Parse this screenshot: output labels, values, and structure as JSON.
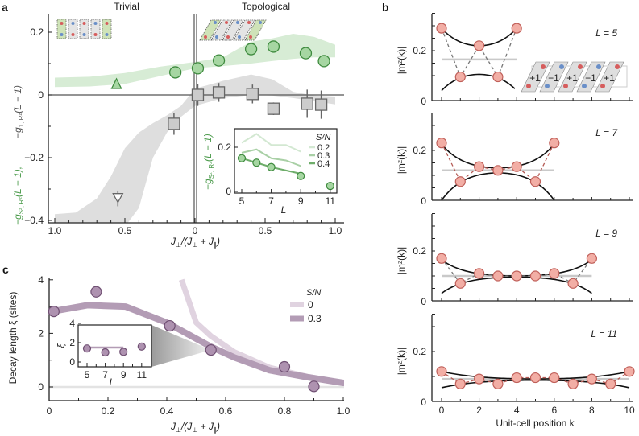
{
  "panel_labels": {
    "a": "a",
    "b": "b",
    "c": "c"
  },
  "colors": {
    "green_fill": "#a6d6a2",
    "green_stroke": "#3f8b3f",
    "green_band": "#d7ecd5",
    "gray_band": "#dedede",
    "square_fill": "#cccccc",
    "square_stroke": "#666666",
    "purple_fill": "#ae92b0",
    "purple_stroke": "#6f4f72",
    "purple_curve": "#b39cb5",
    "purple_light": "#e0d3e0",
    "pink_fill": "#f2aea5",
    "pink_stroke": "#c0605a"
  },
  "chart_data": [
    {
      "id": "a",
      "type": "scatter",
      "region_labels": [
        "Trivial",
        "Topological"
      ],
      "xlabel": [
        "J",
        "⊥",
        "/(J",
        "⊥",
        " + J",
        "∥",
        ")"
      ],
      "ylabel_green": [
        "−g",
        "Sᶻ, Rᶻ",
        "(L − 1),"
      ],
      "ylabel_gray": [
        "−g",
        "1, Rᶻ",
        "(L − 1)"
      ],
      "xlim": [
        -1,
        1
      ],
      "ylim": [
        -0.4,
        0.26
      ],
      "xticks": [
        -1,
        -0.5,
        0,
        0.5,
        1
      ],
      "xtick_labels": [
        "1.0",
        "0.5",
        "0",
        "0.5",
        "1.0"
      ],
      "yticks": [
        0.2,
        0,
        -0.2,
        -0.4
      ],
      "ytick_labels": [
        "0.2",
        "0",
        "−0.2",
        "−0.4"
      ],
      "grid": false,
      "series": [
        {
          "name": "g_Sz_Rz",
          "marker": "circle",
          "x": [
            -0.14,
            0.02,
            0.17,
            0.4,
            0.56,
            0.79,
            0.92
          ],
          "y": [
            0.072,
            0.085,
            0.11,
            0.146,
            0.154,
            0.133,
            0.108
          ]
        },
        {
          "name": "g_Sz_Rz_trivial",
          "marker": "triangle-up",
          "x": [
            -0.56
          ],
          "y": [
            0.036
          ]
        },
        {
          "name": "g_1_Rz",
          "marker": "square",
          "x": [
            -0.15,
            0.02,
            0.17,
            0.41,
            0.56,
            0.8,
            0.9
          ],
          "y": [
            -0.092,
            0.0,
            0.008,
            0.003,
            -0.044,
            -0.028,
            -0.031
          ],
          "err": [
            0.035,
            0.035,
            0.03,
            0.03,
            0.02,
            0.045,
            0.045
          ]
        },
        {
          "name": "g_1_Rz_trivial",
          "marker": "triangle-down",
          "x": [
            -0.55
          ],
          "y": [
            -0.33
          ],
          "err": [
            0.025
          ]
        }
      ],
      "bands": [
        {
          "name": "green-band",
          "x": [
            -1,
            -0.75,
            -0.5,
            -0.25,
            0,
            0.2,
            0.4,
            0.55,
            0.7,
            0.85,
            1
          ],
          "lower": [
            0.025,
            0.027,
            0.035,
            0.06,
            0.085,
            0.092,
            0.1,
            0.108,
            0.115,
            0.12,
            0.12
          ],
          "upper": [
            0.055,
            0.058,
            0.07,
            0.09,
            0.105,
            0.12,
            0.17,
            0.18,
            0.195,
            0.185,
            0.16
          ]
        },
        {
          "name": "gray-band",
          "x": [
            -1,
            -0.85,
            -0.7,
            -0.6,
            -0.5,
            -0.4,
            -0.3,
            -0.2,
            -0.1,
            0,
            0.2,
            0.4,
            0.55,
            0.7,
            0.85,
            1
          ],
          "lower": [
            -0.42,
            -0.42,
            -0.42,
            -0.42,
            -0.42,
            -0.36,
            -0.2,
            -0.12,
            -0.07,
            -0.035,
            -0.01,
            0.0,
            -0.002,
            -0.01,
            -0.02,
            -0.03
          ],
          "upper": [
            -0.38,
            -0.375,
            -0.33,
            -0.26,
            -0.17,
            -0.12,
            -0.09,
            -0.065,
            -0.035,
            0.02,
            0.045,
            0.065,
            0.05,
            0.01,
            -0.002,
            -0.005
          ]
        }
      ],
      "inset": {
        "type": "line",
        "xlabel": "L",
        "ylabel": [
          "−g",
          "Sᶻ, Rᶻ",
          "(L − 1)"
        ],
        "xticks": [
          5,
          7,
          9,
          11
        ],
        "xtick_labels": [
          "5",
          "7",
          "9",
          "11"
        ],
        "yticks": [
          0.2,
          0
        ],
        "ytick_labels": [
          "0.2",
          "0"
        ],
        "xlim": [
          4.5,
          11.5
        ],
        "ylim": [
          0,
          0.29
        ],
        "legend_title": "S/N",
        "legend_position": "right",
        "points": {
          "x": [
            5,
            6,
            7,
            9,
            11
          ],
          "y": [
            0.15,
            0.13,
            0.11,
            0.07,
            0.025
          ]
        },
        "series": [
          {
            "name": "0.2",
            "color": "#d3e8d2",
            "x": [
              5,
              6,
              7,
              8,
              9
            ],
            "y": [
              0.22,
              0.26,
              0.21,
              0.21,
              0.18
            ]
          },
          {
            "name": "0.3",
            "color": "#a9d0a6",
            "x": [
              5,
              6,
              7,
              8,
              9
            ],
            "y": [
              0.175,
              0.19,
              0.15,
              0.14,
              0.115
            ]
          },
          {
            "name": "0.4",
            "color": "#6ead6a",
            "x": [
              5,
              6,
              7,
              8,
              9
            ],
            "y": [
              0.15,
              0.13,
              0.11,
              0.095,
              0.08
            ]
          }
        ]
      }
    },
    {
      "id": "b",
      "type": "scatter",
      "xlabel": "Unit-cell position k",
      "ylabel": "|mᶻ(k)|",
      "xticks": [
        0,
        2,
        4,
        6,
        8,
        10
      ],
      "xtick_labels": [
        "0",
        "2",
        "4",
        "6",
        "8",
        "10"
      ],
      "ytick_labels": [
        "0",
        "0.2"
      ],
      "ylim": [
        0,
        0.35
      ],
      "xlim": [
        -0.5,
        10.5
      ],
      "subplots": [
        {
          "label": "L = 5",
          "values": [
            0.29,
            0.095,
            0.22,
            0.095,
            0.29
          ],
          "mean": 0.165,
          "upper": {
            "edge": 0.29,
            "center": 0.22
          },
          "lower": {
            "edge": 0.04,
            "center": 0.105
          },
          "dash_color": "#777777"
        },
        {
          "label": "L = 7",
          "values": [
            0.23,
            0.075,
            0.135,
            0.12,
            0.135,
            0.075,
            0.23
          ],
          "mean": 0.12,
          "upper": {
            "edge": 0.225,
            "center": 0.13
          },
          "lower": {
            "edge": 0.0,
            "center": 0.11
          },
          "dash_color": "#b55b55"
        },
        {
          "label": "L = 9",
          "values": [
            0.17,
            0.07,
            0.11,
            0.1,
            0.1,
            0.1,
            0.11,
            0.07,
            0.17
          ],
          "mean": 0.1,
          "upper": {
            "edge": 0.165,
            "center": 0.1
          },
          "lower": {
            "edge": 0.03,
            "center": 0.095
          },
          "dash_color": "#777777"
        },
        {
          "label": "L = 11",
          "values": [
            0.12,
            0.07,
            0.09,
            0.07,
            0.095,
            0.095,
            0.095,
            0.07,
            0.09,
            0.07,
            0.12
          ],
          "mean": 0.09,
          "upper": {
            "edge": 0.12,
            "center": 0.09
          },
          "lower": {
            "edge": 0.055,
            "center": 0.085
          },
          "dash_color": "#b55b55"
        }
      ],
      "lattice_labels": [
        "+1",
        "−1",
        "+1",
        "−1",
        "+1"
      ]
    },
    {
      "id": "c",
      "type": "line",
      "xlabel": [
        "J",
        "⊥",
        "/(J",
        "⊥",
        " + J",
        "∥",
        ")"
      ],
      "ylabel": "Decay length ξ (sites)",
      "xlim": [
        0,
        1
      ],
      "ylim": [
        -0.5,
        4
      ],
      "xticks": [
        0,
        0.2,
        0.4,
        0.6,
        0.8,
        1.0
      ],
      "xtick_labels": [
        "0",
        "0.2",
        "0.4",
        "0.6",
        "0.8",
        "1.0"
      ],
      "yticks": [
        0,
        2,
        4
      ],
      "ytick_labels": [
        "0",
        "2",
        "4"
      ],
      "legend_title": "S/N",
      "legend_position": "top-right",
      "points": {
        "x": [
          0.016,
          0.16,
          0.41,
          0.55,
          0.8,
          0.9
        ],
        "y": [
          2.82,
          3.55,
          2.28,
          1.38,
          0.75,
          0.02
        ]
      },
      "series": [
        {
          "name": "0",
          "x": [
            0.45,
            0.5,
            0.55,
            0.63,
            0.75,
            0.88,
            1.0
          ],
          "y": [
            4.0,
            2.4,
            1.9,
            1.3,
            0.72,
            0.38,
            0.15
          ]
        },
        {
          "name": "0.3",
          "x": [
            0,
            0.13,
            0.26,
            0.4,
            0.55,
            0.63,
            0.75,
            0.88,
            1.0
          ],
          "y": [
            2.8,
            3.05,
            3.0,
            2.4,
            1.5,
            1.1,
            0.62,
            0.36,
            0.15
          ]
        }
      ],
      "inset": {
        "xlabel": "L",
        "ylabel": "ξ",
        "xticks": [
          5,
          7,
          9,
          11
        ],
        "xtick_labels": [
          "5",
          "7",
          "9",
          "11"
        ],
        "yticks": [
          4,
          2,
          0
        ],
        "ytick_labels": [
          "4",
          "2",
          "0"
        ],
        "points": {
          "x": [
            5,
            7,
            9,
            11
          ],
          "y": [
            1.4,
            1.0,
            1.05,
            1.6
          ]
        },
        "line": {
          "x": [
            5,
            9
          ],
          "y": [
            1.5,
            1.5
          ]
        }
      }
    }
  ]
}
